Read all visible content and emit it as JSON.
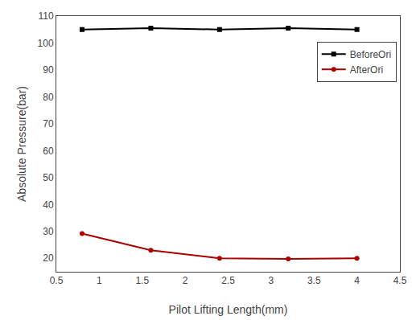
{
  "chart_data": {
    "type": "line",
    "x": [
      0.8,
      1.6,
      2.4,
      3.2,
      4.0
    ],
    "series": [
      {
        "name": "BeforeOri",
        "color": "#000000",
        "marker": "square",
        "line_style": "solid",
        "values": [
          105.0,
          105.5,
          105.0,
          105.5,
          105.0
        ]
      },
      {
        "name": "AfterOri",
        "color": "#aa0000",
        "marker": "circle",
        "line_style": "solid",
        "values": [
          29.2,
          23.0,
          20.0,
          19.8,
          20.0
        ]
      }
    ],
    "xlabel": "Pilot Lifting Length(mm)",
    "ylabel": "Absolute Pressure(bar)",
    "xlim": [
      0.5,
      4.5
    ],
    "ylim": [
      15,
      110
    ],
    "xticks": [
      0.5,
      1,
      1.5,
      2,
      2.5,
      3,
      3.5,
      4,
      4.5
    ],
    "yticks": [
      20,
      30,
      40,
      50,
      60,
      70,
      80,
      90,
      100,
      110
    ],
    "grid": false,
    "legend": "upper right"
  }
}
